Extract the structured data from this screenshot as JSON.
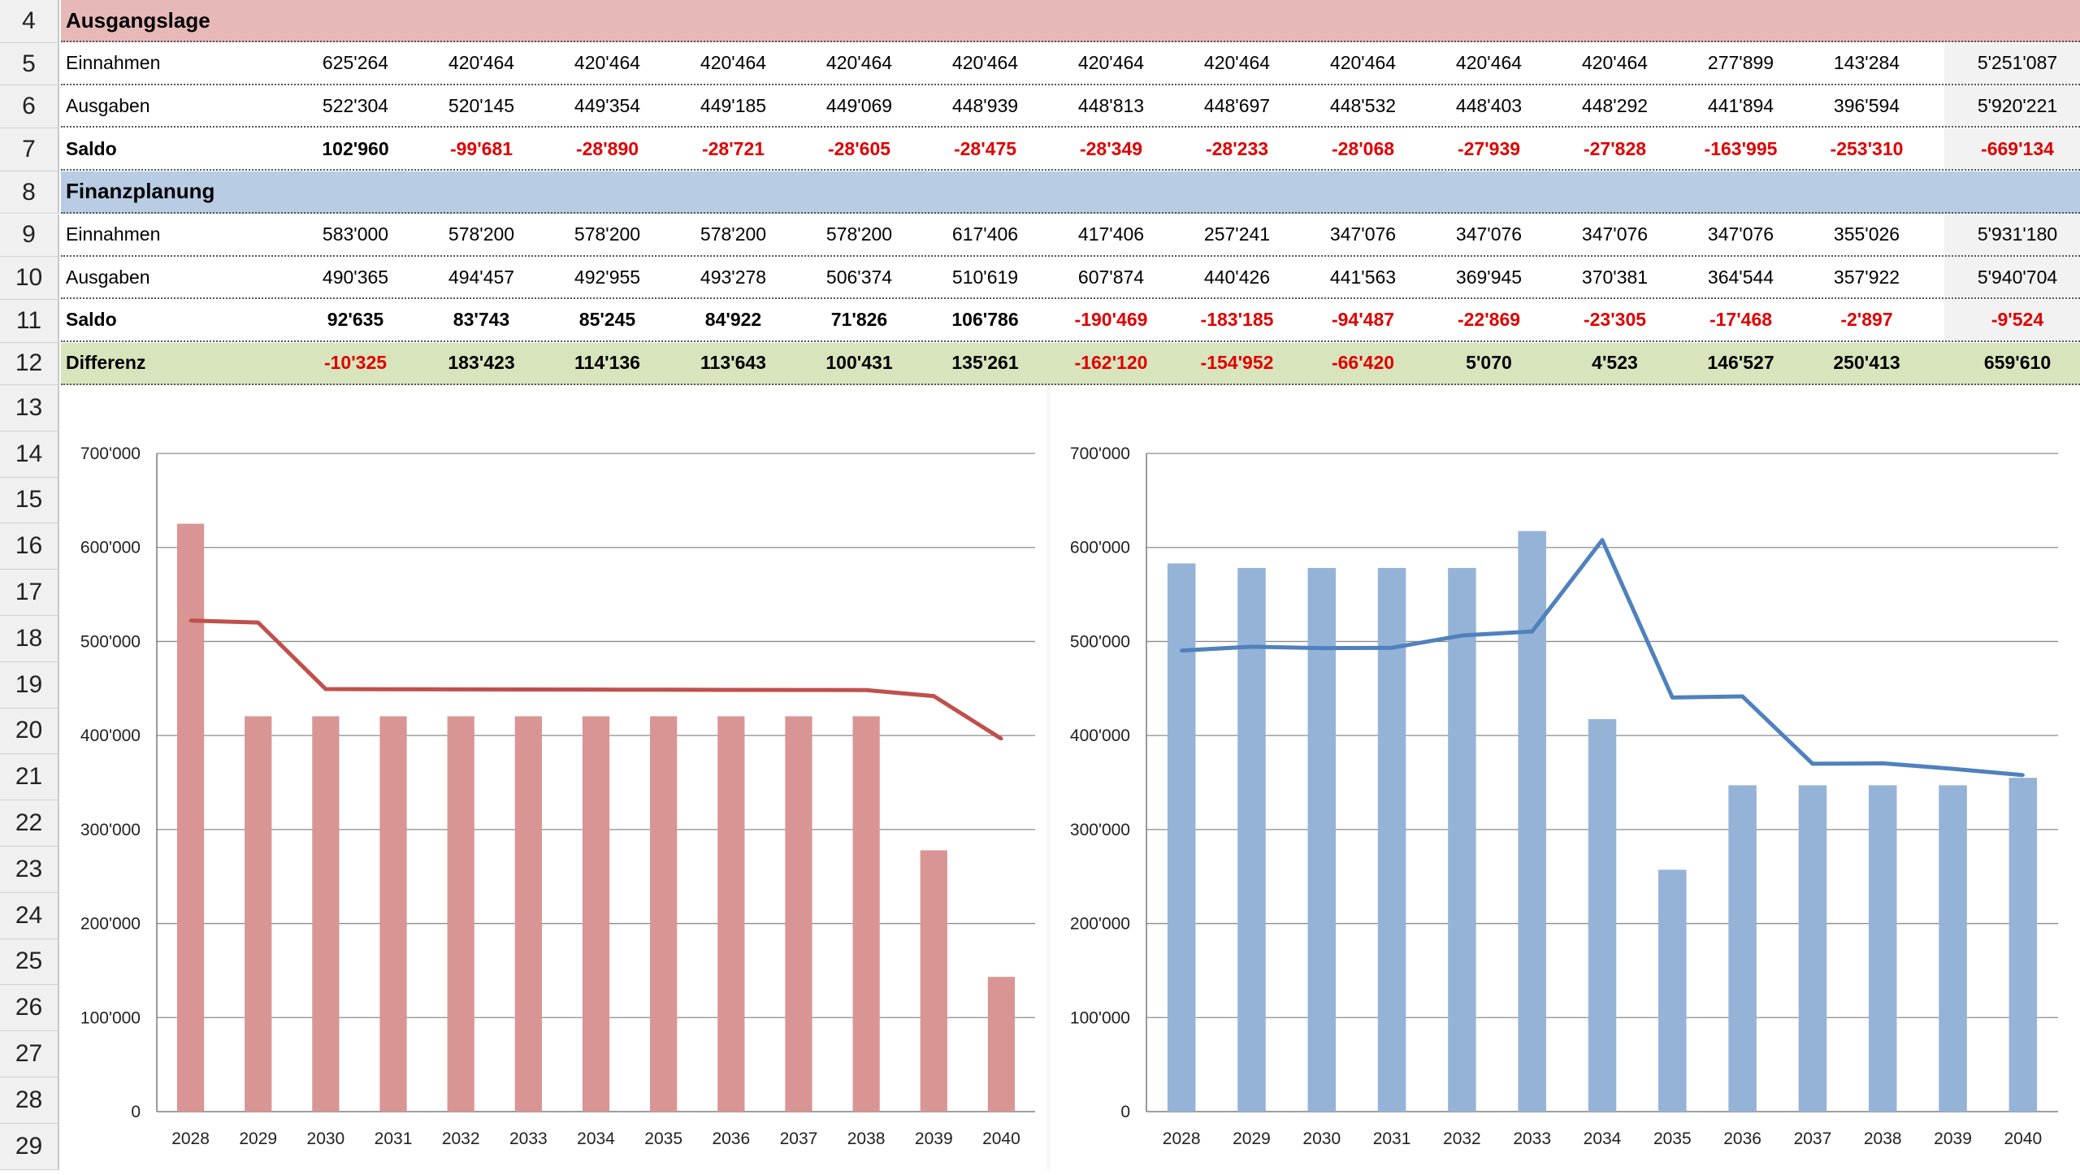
{
  "row_numbers": [
    "4",
    "5",
    "6",
    "7",
    "8",
    "9",
    "10",
    "11",
    "12",
    "13",
    "14",
    "15",
    "16",
    "17",
    "18",
    "19",
    "20",
    "21",
    "22",
    "23",
    "24",
    "25",
    "26",
    "27",
    "28",
    "29"
  ],
  "sections": {
    "ausgangslage": {
      "title": "Ausgangslage",
      "color": "#e6b8b7",
      "rows": [
        {
          "label": "Einnahmen",
          "values": [
            "625'264",
            "420'464",
            "420'464",
            "420'464",
            "420'464",
            "420'464",
            "420'464",
            "420'464",
            "420'464",
            "420'464",
            "420'464",
            "277'899",
            "143'284",
            "5'251'087"
          ]
        },
        {
          "label": "Ausgaben",
          "values": [
            "522'304",
            "520'145",
            "449'354",
            "449'185",
            "449'069",
            "448'939",
            "448'813",
            "448'697",
            "448'532",
            "448'403",
            "448'292",
            "441'894",
            "396'594",
            "5'920'221"
          ]
        },
        {
          "label": "Saldo",
          "bold": true,
          "values": [
            "102'960",
            "-99'681",
            "-28'890",
            "-28'721",
            "-28'605",
            "-28'475",
            "-28'349",
            "-28'233",
            "-28'068",
            "-27'939",
            "-27'828",
            "-163'995",
            "-253'310",
            "-669'134"
          ]
        }
      ]
    },
    "finanzplanung": {
      "title": "Finanzplanung",
      "color": "#b8cce4",
      "rows": [
        {
          "label": "Einnahmen",
          "values": [
            "583'000",
            "578'200",
            "578'200",
            "578'200",
            "578'200",
            "617'406",
            "417'406",
            "257'241",
            "347'076",
            "347'076",
            "347'076",
            "347'076",
            "355'026",
            "5'931'180"
          ]
        },
        {
          "label": "Ausgaben",
          "values": [
            "490'365",
            "494'457",
            "492'955",
            "493'278",
            "506'374",
            "510'619",
            "607'874",
            "440'426",
            "441'563",
            "369'945",
            "370'381",
            "364'544",
            "357'922",
            "5'940'704"
          ]
        },
        {
          "label": "Saldo",
          "bold": true,
          "values": [
            "92'635",
            "83'743",
            "85'245",
            "84'922",
            "71'826",
            "106'786",
            "-190'469",
            "-183'185",
            "-94'487",
            "-22'869",
            "-23'305",
            "-17'468",
            "-2'897",
            "-9'524"
          ]
        }
      ]
    },
    "differenz": {
      "label": "Differenz",
      "color": "#d8e4bc",
      "values": [
        "-10'325",
        "183'423",
        "114'136",
        "113'643",
        "100'431",
        "135'261",
        "-162'120",
        "-154'952",
        "-66'420",
        "5'070",
        "4'523",
        "146'527",
        "250'413",
        "659'610"
      ]
    }
  },
  "chart_data": [
    {
      "type": "bar+line",
      "categories": [
        "2028",
        "2029",
        "2030",
        "2031",
        "2032",
        "2033",
        "2034",
        "2035",
        "2036",
        "2037",
        "2038",
        "2039",
        "2040"
      ],
      "series": [
        {
          "type": "bar",
          "values": [
            625264,
            420464,
            420464,
            420464,
            420464,
            420464,
            420464,
            420464,
            420464,
            420464,
            420464,
            277899,
            143284
          ],
          "color": "#d99594"
        },
        {
          "type": "line",
          "values": [
            522304,
            520145,
            449354,
            449185,
            449069,
            448939,
            448813,
            448697,
            448532,
            448403,
            448292,
            441894,
            396594
          ],
          "color": "#c0504d"
        }
      ],
      "ylim": [
        0,
        700000
      ],
      "yticks": [
        "0",
        "100'000",
        "200'000",
        "300'000",
        "400'000",
        "500'000",
        "600'000",
        "700'000"
      ],
      "grid": true
    },
    {
      "type": "bar+line",
      "categories": [
        "2028",
        "2029",
        "2030",
        "2031",
        "2032",
        "2033",
        "2034",
        "2035",
        "2036",
        "2037",
        "2038",
        "2039",
        "2040"
      ],
      "series": [
        {
          "type": "bar",
          "values": [
            583000,
            578200,
            578200,
            578200,
            578200,
            617406,
            417406,
            257241,
            347076,
            347076,
            347076,
            347076,
            355026
          ],
          "color": "#95b3d7"
        },
        {
          "type": "line",
          "values": [
            490365,
            494457,
            492955,
            493278,
            506374,
            510619,
            607874,
            440426,
            441563,
            369945,
            370381,
            364544,
            357922
          ],
          "color": "#4f81bd"
        }
      ],
      "ylim": [
        0,
        700000
      ],
      "yticks": [
        "0",
        "100'000",
        "200'000",
        "300'000",
        "400'000",
        "500'000",
        "600'000",
        "700'000"
      ],
      "grid": true
    }
  ]
}
